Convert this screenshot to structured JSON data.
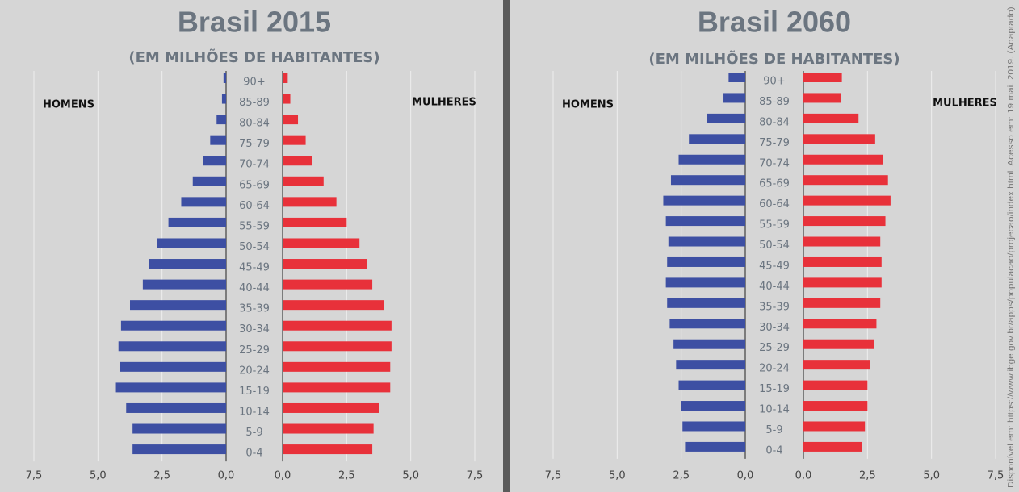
{
  "chart_data": [
    {
      "type": "pyramid",
      "title": "Brasil 2015",
      "subtitle": "(EM MILHÕES DE HABITANTES)",
      "categories": [
        "90+",
        "85-89",
        "80-84",
        "75-79",
        "70-74",
        "65-69",
        "60-64",
        "55-59",
        "50-54",
        "45-49",
        "40-44",
        "35-39",
        "30-34",
        "25-29",
        "20-24",
        "15-19",
        "10-14",
        "5-9",
        "0-4"
      ],
      "series": [
        {
          "name": "HOMENS",
          "color": "#3d4fa3",
          "values": [
            0.1,
            0.16,
            0.37,
            0.62,
            0.9,
            1.3,
            1.75,
            2.25,
            2.7,
            3.0,
            3.25,
            3.75,
            4.1,
            4.2,
            4.15,
            4.3,
            3.9,
            3.65,
            3.65
          ]
        },
        {
          "name": "MULHERES",
          "color": "#e8313a",
          "values": [
            0.2,
            0.3,
            0.6,
            0.9,
            1.15,
            1.6,
            2.1,
            2.5,
            3.0,
            3.3,
            3.5,
            3.95,
            4.25,
            4.25,
            4.2,
            4.2,
            3.75,
            3.55,
            3.5
          ]
        }
      ],
      "xlim": [
        0,
        7.5
      ],
      "xticks": [
        {
          "value": 0,
          "label": "0,0"
        },
        {
          "value": 2.5,
          "label": "2,5"
        },
        {
          "value": 5,
          "label": "5,0"
        },
        {
          "value": 7.5,
          "label": "7,5"
        }
      ],
      "grid": true
    },
    {
      "type": "pyramid",
      "title": "Brasil 2060",
      "subtitle": "(EM MILHÕES DE HABITANTES)",
      "categories": [
        "90+",
        "85-89",
        "80-84",
        "75-79",
        "70-74",
        "65-69",
        "60-64",
        "55-59",
        "50-54",
        "45-49",
        "40-44",
        "35-39",
        "30-34",
        "25-29",
        "20-24",
        "15-19",
        "10-14",
        "5-9",
        "0-4"
      ],
      "series": [
        {
          "name": "HOMENS",
          "color": "#3d4fa3",
          "values": [
            0.65,
            0.85,
            1.5,
            2.2,
            2.6,
            2.9,
            3.2,
            3.1,
            3.0,
            3.05,
            3.1,
            3.05,
            2.95,
            2.8,
            2.7,
            2.6,
            2.5,
            2.45,
            2.35
          ]
        },
        {
          "name": "MULHERES",
          "color": "#e8313a",
          "values": [
            1.5,
            1.45,
            2.15,
            2.8,
            3.1,
            3.3,
            3.4,
            3.2,
            3.0,
            3.05,
            3.05,
            3.0,
            2.85,
            2.75,
            2.6,
            2.5,
            2.5,
            2.4,
            2.3
          ]
        }
      ],
      "xlim": [
        0,
        7.5
      ],
      "xticks": [
        {
          "value": 0,
          "label": "0,0"
        },
        {
          "value": 2.5,
          "label": "2,5"
        },
        {
          "value": 5,
          "label": "5,0"
        },
        {
          "value": 7.5,
          "label": "7,5"
        }
      ],
      "grid": true
    }
  ],
  "source": "Disponível em: https://www.ibge.gov.br/apps/populacao/projecao/index.html. Acesso em: 19 mai. 2019. (Adaptado)."
}
